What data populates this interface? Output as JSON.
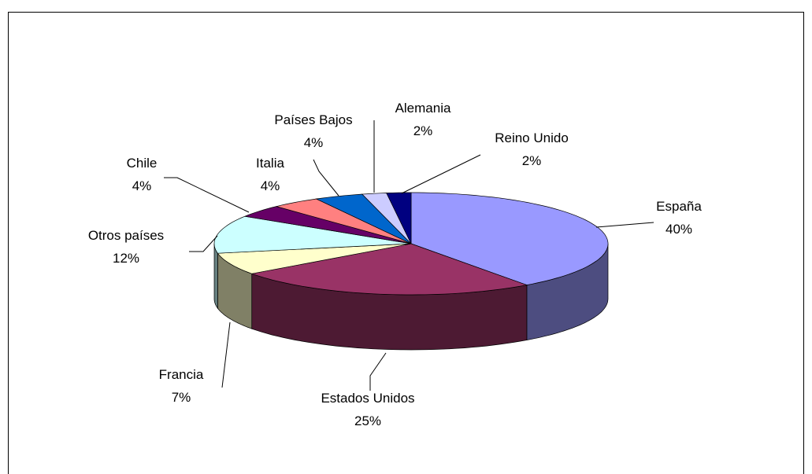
{
  "chart_data": {
    "type": "pie",
    "categories": [
      "España",
      "Estados Unidos",
      "Francia",
      "Otros países",
      "Chile",
      "Italia",
      "Países Bajos",
      "Alemania",
      "Reino Unido"
    ],
    "values": [
      40,
      25,
      7,
      12,
      4,
      4,
      4,
      2,
      2
    ],
    "value_labels": [
      "40%",
      "25%",
      "7%",
      "12%",
      "4%",
      "4%",
      "4%",
      "2%",
      "2%"
    ],
    "colors": [
      "#9999ff",
      "#993366",
      "#ffffcc",
      "#ccffff",
      "#660066",
      "#ff8080",
      "#0066cc",
      "#ccccff",
      "#000080"
    ]
  }
}
